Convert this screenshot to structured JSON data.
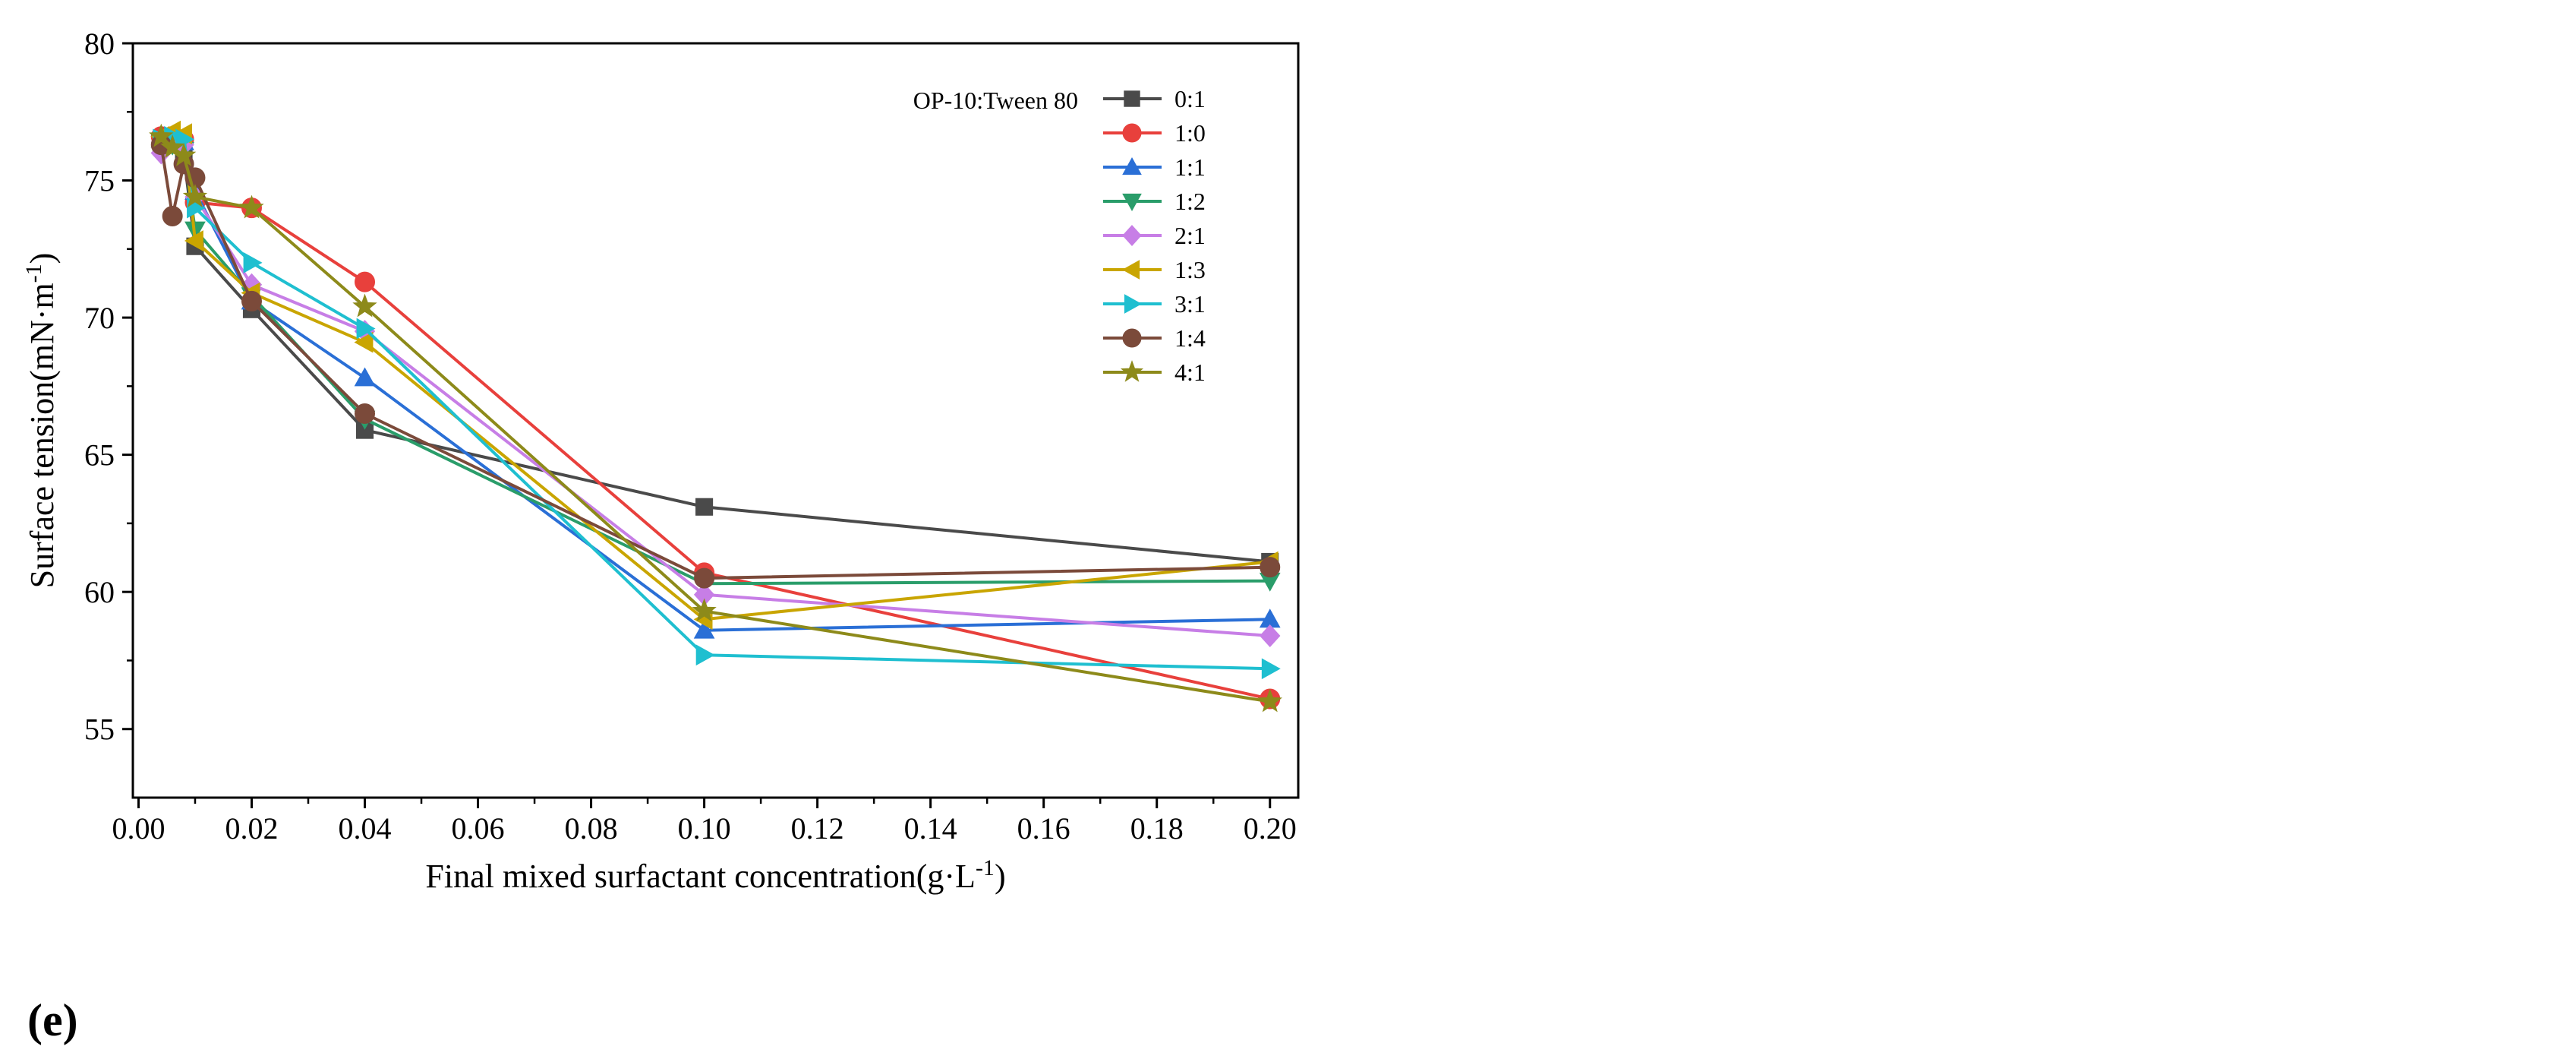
{
  "panel_label": "(e)",
  "chart_data": {
    "type": "line",
    "title": "",
    "xlabel": "Final mixed surfactant concentration(g·L",
    "xlabel_sup": "-1",
    "xlabel_end": ")",
    "ylabel": "Surface tension(mN·m",
    "ylabel_sup": "-1",
    "ylabel_end": ")",
    "xlim": [
      -0.001,
      0.205
    ],
    "ylim": [
      52.5,
      80
    ],
    "xticks": [
      "0.00",
      "0.02",
      "0.04",
      "0.06",
      "0.08",
      "0.10",
      "0.12",
      "0.14",
      "0.16",
      "0.18",
      "0.20"
    ],
    "yticks": [
      "55",
      "60",
      "65",
      "70",
      "75",
      "80"
    ],
    "legend_title": "OP-10:Tween 80",
    "legend_position": "top-right",
    "grid": false,
    "series": [
      {
        "name": "0:1",
        "color": "#4a4a4a",
        "marker": "square",
        "x": [
          0.004,
          0.006,
          0.008,
          0.01,
          0.02,
          0.04,
          0.1,
          0.2
        ],
        "y": [
          76.4,
          76.3,
          75.9,
          72.6,
          70.3,
          65.9,
          63.1,
          61.1
        ]
      },
      {
        "name": "1:0",
        "color": "#e8403c",
        "marker": "circle",
        "x": [
          0.004,
          0.006,
          0.008,
          0.01,
          0.02,
          0.04,
          0.1,
          0.2
        ],
        "y": [
          76.6,
          76.6,
          76.5,
          74.2,
          74.0,
          71.3,
          60.7,
          56.1
        ]
      },
      {
        "name": "1:1",
        "color": "#2a6fd6",
        "marker": "triangle-up",
        "x": [
          0.004,
          0.006,
          0.008,
          0.01,
          0.02,
          0.04,
          0.1,
          0.2
        ],
        "y": [
          76.5,
          76.6,
          76.4,
          74.6,
          70.6,
          67.8,
          58.6,
          59.0
        ]
      },
      {
        "name": "1:2",
        "color": "#2a9d6a",
        "marker": "triangle-down",
        "x": [
          0.004,
          0.006,
          0.008,
          0.01,
          0.02,
          0.04,
          0.1,
          0.2
        ],
        "y": [
          76.4,
          76.3,
          76.1,
          73.2,
          70.8,
          66.3,
          60.3,
          60.4
        ]
      },
      {
        "name": "2:1",
        "color": "#c77ee6",
        "marker": "diamond",
        "x": [
          0.004,
          0.006,
          0.008,
          0.01,
          0.02,
          0.04,
          0.1,
          0.2
        ],
        "y": [
          76.0,
          76.5,
          76.3,
          74.4,
          71.2,
          69.5,
          59.9,
          58.4
        ]
      },
      {
        "name": "1:3",
        "color": "#c9a500",
        "marker": "triangle-left",
        "x": [
          0.004,
          0.006,
          0.008,
          0.01,
          0.02,
          0.04,
          0.1,
          0.2
        ],
        "y": [
          76.6,
          76.8,
          76.7,
          72.8,
          70.9,
          69.1,
          59.0,
          61.1
        ]
      },
      {
        "name": "3:1",
        "color": "#1fbfd0",
        "marker": "triangle-right",
        "x": [
          0.004,
          0.006,
          0.008,
          0.01,
          0.02,
          0.04,
          0.1,
          0.2
        ],
        "y": [
          76.5,
          76.6,
          76.5,
          74.0,
          72.0,
          69.6,
          57.7,
          57.2
        ]
      },
      {
        "name": "1:4",
        "color": "#7b4a3a",
        "marker": "circle",
        "x": [
          0.004,
          0.006,
          0.008,
          0.01,
          0.02,
          0.04,
          0.1,
          0.2
        ],
        "y": [
          76.3,
          73.7,
          75.6,
          75.1,
          70.6,
          66.5,
          60.5,
          60.9
        ]
      },
      {
        "name": "4:1",
        "color": "#8d8a1a",
        "marker": "star",
        "x": [
          0.004,
          0.006,
          0.008,
          0.01,
          0.02,
          0.04,
          0.1,
          0.2
        ],
        "y": [
          76.6,
          76.2,
          75.9,
          74.4,
          74.0,
          70.4,
          59.3,
          56.0
        ]
      }
    ]
  }
}
